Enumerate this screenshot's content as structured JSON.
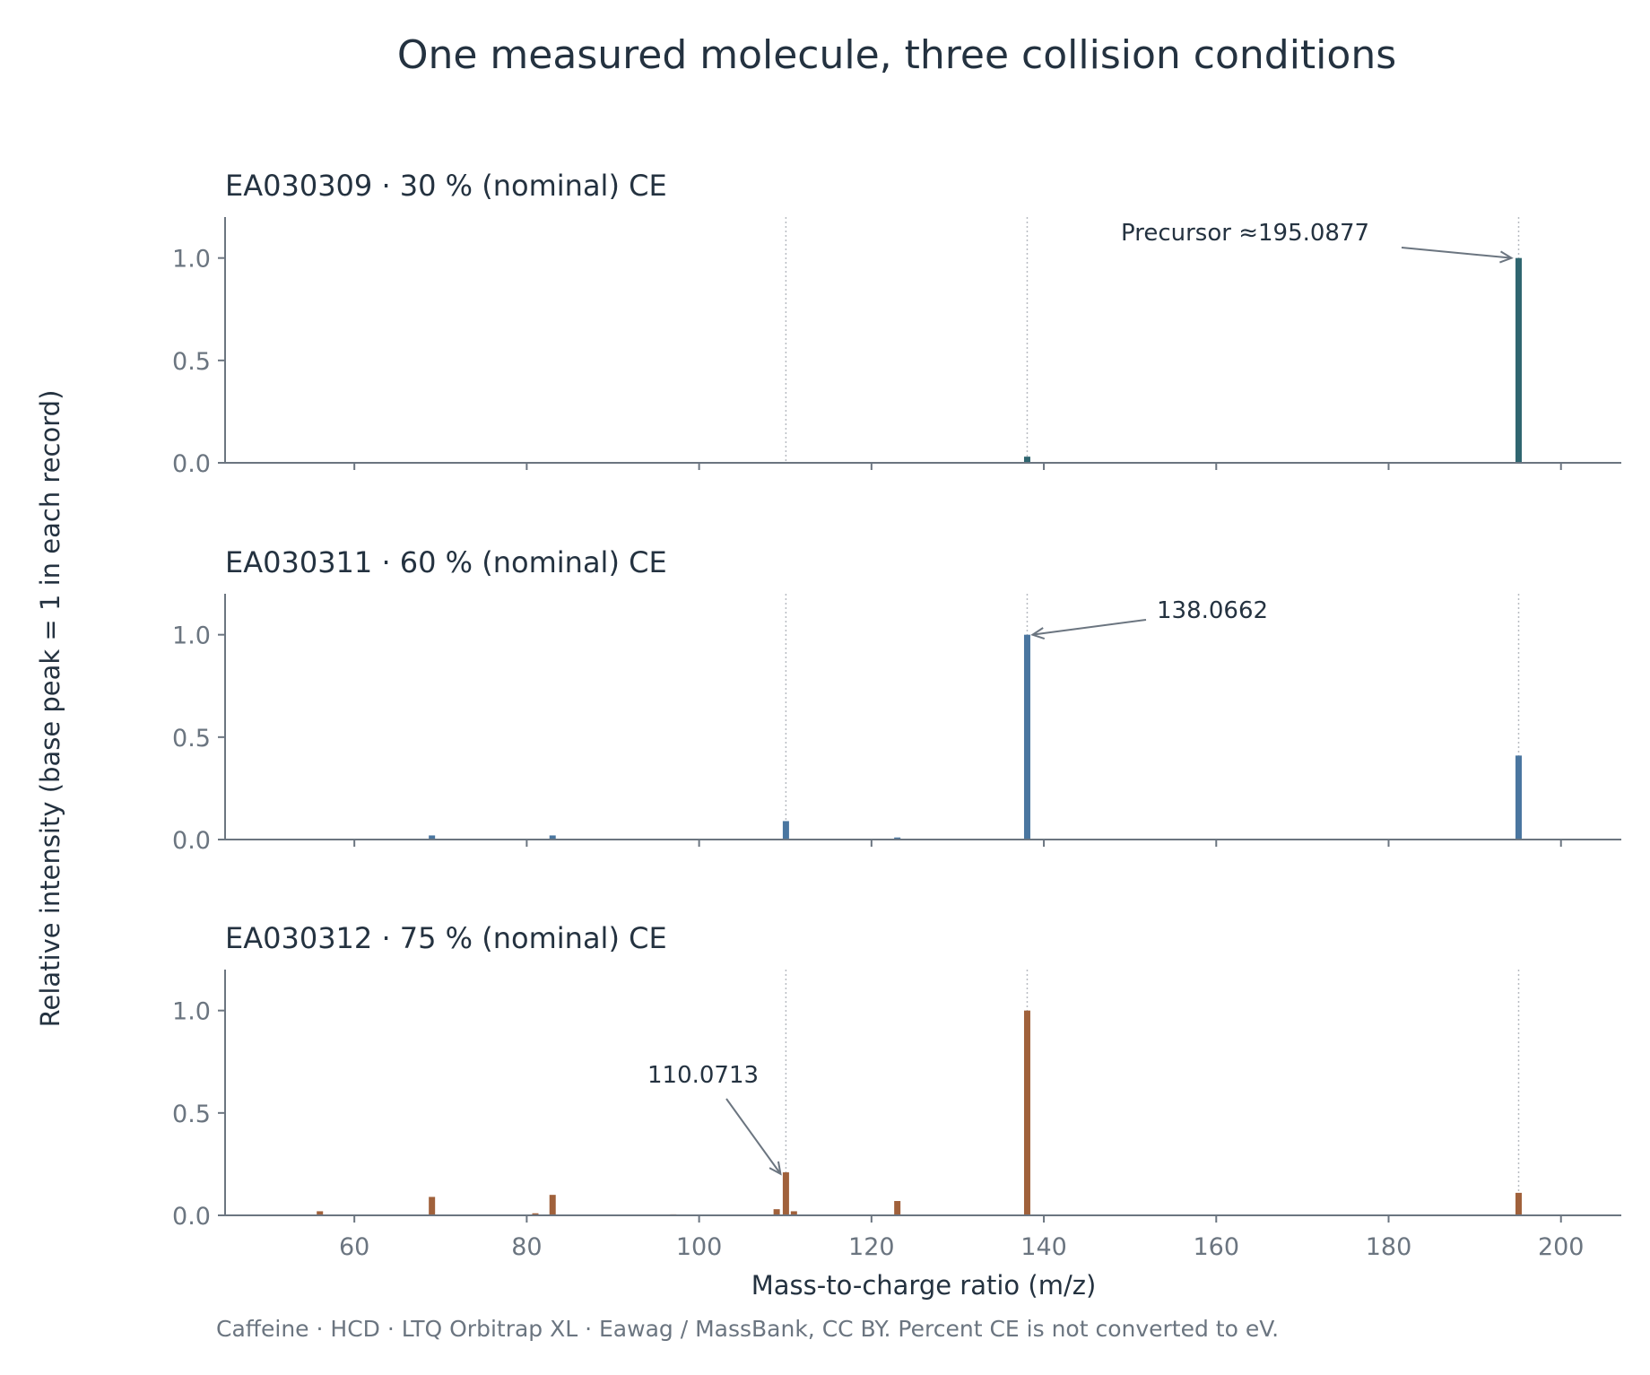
{
  "title": "One measured molecule, three collision conditions",
  "footnote": "Caffeine · HCD · LTQ Orbitrap XL · Eawag / MassBank, CC BY. Percent CE is not converted to eV.",
  "colors": {
    "text": "#243240",
    "muted": "#6b7580",
    "axis": "#6b7580",
    "ref_line": "#b8bcc2"
  },
  "chart_data": {
    "type": "bar",
    "subtype": "mass-spectrum stem plot, 3 stacked panels with shared x axis",
    "xlabel": "Mass-to-charge ratio (m/z)",
    "ylabel": "Relative intensity (base peak = 1 in each record)",
    "xlim": [
      45,
      207
    ],
    "ylim": [
      0,
      1.2
    ],
    "x_ticks": [
      60,
      80,
      100,
      120,
      140,
      160,
      180,
      200
    ],
    "y_ticks": [
      0,
      0.5,
      1.0
    ],
    "y_tick_labels": [
      "0.0",
      "0.5",
      "1.0"
    ],
    "reference_lines_mz": [
      110.0713,
      138.0662,
      195.0877
    ],
    "grid": false,
    "panels": [
      {
        "title": "EA030309 · 30 % (nominal) CE",
        "color": "#2f6670",
        "peaks": [
          {
            "mz": 138.0662,
            "intensity": 0.03
          },
          {
            "mz": 195.0877,
            "intensity": 1.0
          }
        ],
        "annotation": {
          "text": "Precursor ≈195.0877",
          "mz": 195.0877,
          "intensity": 1.0
        }
      },
      {
        "title": "EA030311 · 60 % (nominal) CE",
        "color": "#4a76a0",
        "peaks": [
          {
            "mz": 69.0,
            "intensity": 0.02
          },
          {
            "mz": 83.0,
            "intensity": 0.02
          },
          {
            "mz": 110.0713,
            "intensity": 0.09
          },
          {
            "mz": 123.0,
            "intensity": 0.01
          },
          {
            "mz": 138.0662,
            "intensity": 1.0
          },
          {
            "mz": 195.0877,
            "intensity": 0.41
          }
        ],
        "annotation": {
          "text": "138.0662",
          "mz": 138.0662,
          "intensity": 1.0
        }
      },
      {
        "title": "EA030312 · 75 % (nominal) CE",
        "color": "#a0613b",
        "peaks": [
          {
            "mz": 56.0,
            "intensity": 0.02
          },
          {
            "mz": 69.0,
            "intensity": 0.09
          },
          {
            "mz": 81.0,
            "intensity": 0.01
          },
          {
            "mz": 83.0,
            "intensity": 0.1
          },
          {
            "mz": 97.0,
            "intensity": 0.005
          },
          {
            "mz": 109.0,
            "intensity": 0.03
          },
          {
            "mz": 110.0713,
            "intensity": 0.21
          },
          {
            "mz": 111.0,
            "intensity": 0.02
          },
          {
            "mz": 123.0,
            "intensity": 0.07
          },
          {
            "mz": 138.0662,
            "intensity": 1.0
          },
          {
            "mz": 195.0877,
            "intensity": 0.11
          }
        ],
        "annotation": {
          "text": "110.0713",
          "mz": 110.0713,
          "intensity": 0.22
        }
      }
    ]
  }
}
